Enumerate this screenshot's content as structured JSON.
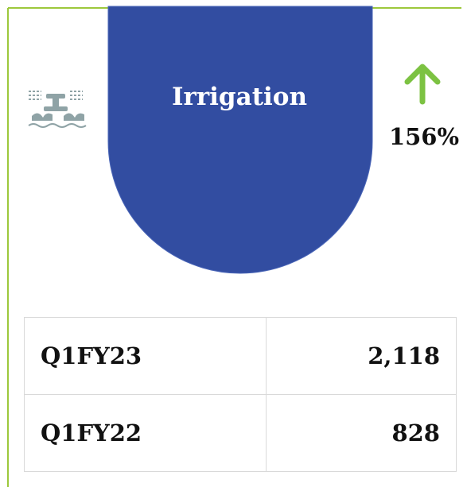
{
  "card": {
    "title": "Irrigation",
    "change": "156%",
    "table": {
      "rows": [
        [
          "Q1FY23",
          "2,118"
        ],
        [
          "Q1FY22",
          "828"
        ]
      ]
    }
  }
}
